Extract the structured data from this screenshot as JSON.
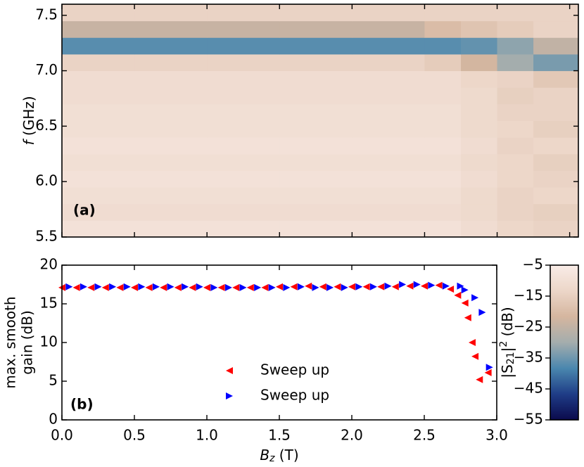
{
  "chart_data": [
    {
      "type": "heatmap",
      "label": "(a)",
      "ylabel": [
        {
          "text": "f",
          "italic": true
        },
        {
          "text": " (GHz)"
        }
      ],
      "xlim": [
        0,
        3.56
      ],
      "xticks": [
        0,
        0.5,
        1,
        1.5,
        2,
        2.5,
        3,
        3.5
      ],
      "ylim": [
        5.5,
        7.6
      ],
      "yticks": [
        5.5,
        {
          "value": 6,
          "label": "6.0"
        },
        6.5,
        {
          "value": 7,
          "label": "7.0"
        },
        7.5
      ],
      "x_edges": [
        0,
        0.5,
        1,
        1.5,
        2,
        2.5,
        2.75,
        3,
        3.25,
        3.56
      ],
      "y_edges": [
        5.5,
        5.65,
        5.8,
        5.95,
        6.1,
        6.25,
        6.4,
        6.55,
        6.7,
        6.85,
        7.0,
        7.15,
        7.3,
        7.45,
        7.6
      ],
      "z": [
        [
          -9,
          -9,
          -9,
          -9,
          -9,
          -9,
          -11,
          -13,
          -14
        ],
        [
          -11,
          -11,
          -11,
          -11,
          -11,
          -11,
          -12,
          -14,
          -15
        ],
        [
          -10,
          -10,
          -10,
          -10,
          -10,
          -10,
          -12,
          -14,
          -13
        ],
        [
          -9,
          -9,
          -9,
          -9,
          -9,
          -9,
          -11,
          -13,
          -14
        ],
        [
          -10,
          -10,
          -10,
          -10,
          -10,
          -10,
          -12,
          -13,
          -15
        ],
        [
          -9,
          -9,
          -9,
          -9,
          -9,
          -9,
          -11,
          -14,
          -13
        ],
        [
          -10,
          -10,
          -10,
          -10,
          -10,
          -10,
          -12,
          -13,
          -15
        ],
        [
          -10,
          -10,
          -10,
          -10,
          -10,
          -10,
          -12,
          -14,
          -14
        ],
        [
          -11,
          -11,
          -11,
          -11,
          -11,
          -11,
          -12,
          -15,
          -14
        ],
        [
          -11,
          -11,
          -11,
          -11,
          -11,
          -11,
          -13,
          -14,
          -17
        ],
        [
          -14,
          -14,
          -14,
          -14,
          -14,
          -16,
          -22,
          -30,
          -34
        ],
        [
          -37,
          -37,
          -37,
          -37,
          -37,
          -37,
          -36,
          -32,
          -25
        ],
        [
          -24,
          -24,
          -24,
          -24,
          -24,
          -20,
          -18,
          -16,
          -14
        ],
        [
          -14,
          -14,
          -14,
          -14,
          -14,
          -14,
          -14,
          -14,
          -14
        ]
      ],
      "zlim": [
        -55,
        -5
      ],
      "colormap": [
        "#0b0a4c",
        "#1f3d87",
        "#4a87ae",
        "#a4adad",
        "#d5b69f",
        "#ecd6c8",
        "#f9ece7"
      ],
      "colorbar_ticks": [
        {
          "value": -5,
          "label": "−5"
        },
        {
          "value": -15,
          "label": "−15"
        },
        {
          "value": -25,
          "label": "−25"
        },
        {
          "value": -35,
          "label": "−35"
        },
        {
          "value": -45,
          "label": "−45"
        },
        {
          "value": -55,
          "label": "−55"
        }
      ],
      "colorbar_label": [
        {
          "text": "|S"
        },
        {
          "text": "21",
          "sub": true
        },
        {
          "text": "|"
        },
        {
          "text": "2",
          "sup": true
        },
        {
          "text": " (dB)"
        }
      ]
    },
    {
      "type": "scatter",
      "label": "(b)",
      "xlabel": [
        {
          "text": "B",
          "italic": true
        },
        {
          "text": "z",
          "sub": true,
          "italic": true
        },
        {
          "text": " (T)"
        }
      ],
      "ylabel": [
        {
          "text": "max. smooth"
        },
        {
          "text": "gain (dB)"
        }
      ],
      "xlim": [
        0,
        3
      ],
      "xticks": [
        {
          "value": 0,
          "label": "0.0"
        },
        0.5,
        {
          "value": 1,
          "label": "1.0"
        },
        1.5,
        {
          "value": 2,
          "label": "2.0"
        },
        2.5,
        {
          "value": 3,
          "label": "3.0"
        }
      ],
      "ylim": [
        0,
        20
      ],
      "yticks": [
        0,
        5,
        10,
        15,
        20
      ],
      "legend": "lower center",
      "series": [
        {
          "name": "Sweep up",
          "color": "#ff0000",
          "marker": "left",
          "x": [
            0.0,
            0.1,
            0.2,
            0.3,
            0.4,
            0.5,
            0.6,
            0.7,
            0.8,
            0.9,
            1.0,
            1.1,
            1.2,
            1.3,
            1.4,
            1.5,
            1.6,
            1.7,
            1.8,
            1.9,
            2.0,
            2.1,
            2.2,
            2.3,
            2.4,
            2.5,
            2.6,
            2.68,
            2.73,
            2.78,
            2.8,
            2.83,
            2.85,
            2.88,
            2.94
          ],
          "values": [
            17.1,
            17.1,
            17.1,
            17.1,
            17.1,
            17.1,
            17.1,
            17.1,
            17.1,
            17.1,
            17.1,
            17.1,
            17.1,
            17.1,
            17.1,
            17.2,
            17.2,
            17.3,
            17.2,
            17.2,
            17.2,
            17.2,
            17.2,
            17.2,
            17.3,
            17.3,
            17.4,
            16.9,
            16.1,
            15.1,
            13.2,
            10.0,
            8.2,
            5.2,
            6.1
          ]
        },
        {
          "name": "Sweep up",
          "color": "#0000ff",
          "marker": "right",
          "x": [
            0.05,
            0.15,
            0.25,
            0.35,
            0.45,
            0.55,
            0.65,
            0.75,
            0.85,
            0.95,
            1.05,
            1.15,
            1.25,
            1.35,
            1.45,
            1.55,
            1.65,
            1.75,
            1.85,
            1.95,
            2.05,
            2.15,
            2.25,
            2.35,
            2.45,
            2.55,
            2.65,
            2.75,
            2.78,
            2.85,
            2.9,
            2.95
          ],
          "values": [
            17.2,
            17.2,
            17.2,
            17.2,
            17.2,
            17.2,
            17.2,
            17.2,
            17.2,
            17.2,
            17.1,
            17.1,
            17.1,
            17.1,
            17.1,
            17.1,
            17.2,
            17.1,
            17.1,
            17.1,
            17.2,
            17.2,
            17.3,
            17.5,
            17.5,
            17.4,
            17.3,
            17.3,
            16.8,
            15.8,
            13.9,
            6.8
          ]
        }
      ]
    }
  ]
}
